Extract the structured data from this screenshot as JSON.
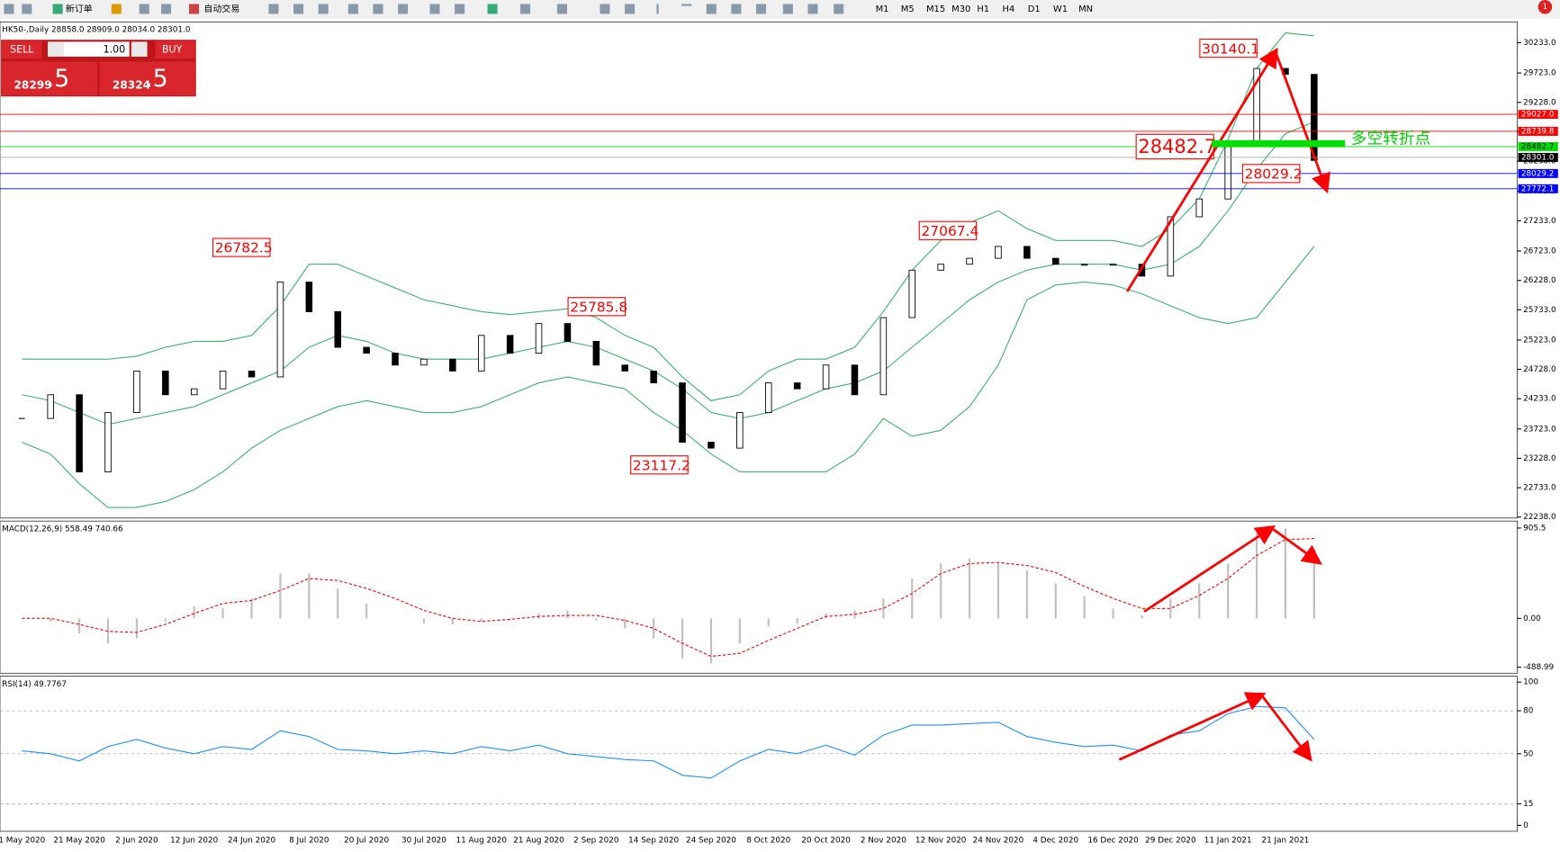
{
  "toolbar": {
    "new_order": "新订单",
    "auto_trading": "自动交易",
    "timeframes": [
      "M1",
      "M5",
      "M15",
      "M30",
      "H1",
      "H4",
      "D1",
      "W1",
      "MN"
    ],
    "notifications": "1"
  },
  "trade_panel": {
    "sell": "SELL",
    "lot": "1.00",
    "buy": "BUY",
    "bid_main": "28299",
    "bid_frac": ".5",
    "ask_main": "28324",
    "ask_frac": ".5"
  },
  "chart_data": [
    {
      "type": "candlestick",
      "title": "HK50-,Daily  28858.0 28909.0 28034.0 28301.0",
      "categories": [
        "1 May 2020",
        null,
        "21 May 2020",
        null,
        "2 Jun 2020",
        null,
        "12 Jun 2020",
        null,
        "24 Jun 2020",
        null,
        "8 Jul 2020",
        null,
        "20 Jul 2020",
        null,
        "30 Jul 2020",
        null,
        "11 Aug 2020",
        null,
        "21 Aug 2020",
        null,
        "2 Sep 2020",
        null,
        "14 Sep 2020",
        null,
        "24 Sep 2020",
        null,
        "8 Oct 2020",
        null,
        "20 Oct 2020",
        null,
        "2 Nov 2020",
        null,
        "12 Nov 2020",
        null,
        "24 Nov 2020",
        null,
        "4 Dec 2020",
        null,
        "16 Dec 2020",
        null,
        "29 Dec 2020",
        null,
        "11 Jan 2021",
        null,
        "21 Jan 2021",
        null
      ],
      "values": [
        23900,
        24300,
        23000,
        24000,
        24700,
        24300,
        24400,
        24700,
        24600,
        26200,
        25700,
        25100,
        25000,
        24800,
        24900,
        24700,
        25300,
        25000,
        25500,
        25200,
        24800,
        24700,
        24500,
        23500,
        23400,
        24000,
        24500,
        24400,
        24800,
        24300,
        25600,
        26400,
        26500,
        26600,
        26800,
        26600,
        26500,
        26500,
        26500,
        26300,
        27300,
        27600,
        28500,
        29800,
        29700,
        28250
      ],
      "bands": [
        {
          "color": "#3cb371",
          "values": [
            24900,
            24900,
            24900,
            24900,
            24950,
            25100,
            25200,
            25200,
            25300,
            25800,
            26500,
            26500,
            26300,
            26100,
            25900,
            25800,
            25700,
            25650,
            25700,
            25750,
            25600,
            25300,
            25100,
            24600,
            24200,
            24300,
            24700,
            24900,
            24900,
            25100,
            25700,
            26400,
            26900,
            27200,
            27400,
            27100,
            26900,
            26900,
            26900,
            26800,
            27100,
            27600,
            28600,
            29800,
            30400,
            30350
          ]
        },
        {
          "color": "#3cb371",
          "values": [
            24300,
            24200,
            24000,
            23800,
            23900,
            24000,
            24100,
            24300,
            24500,
            24700,
            25100,
            25300,
            25200,
            25000,
            24900,
            24900,
            24900,
            25000,
            25100,
            25200,
            25100,
            24900,
            24700,
            24400,
            24000,
            23900,
            24000,
            24200,
            24400,
            24500,
            24700,
            25100,
            25500,
            25900,
            26200,
            26400,
            26500,
            26500,
            26500,
            26400,
            26500,
            26800,
            27400,
            28100,
            28700,
            28900
          ]
        },
        {
          "color": "#3cb371",
          "values": [
            23500,
            23300,
            22800,
            22400,
            22400,
            22500,
            22700,
            23000,
            23400,
            23700,
            23900,
            24100,
            24200,
            24100,
            24000,
            24000,
            24100,
            24300,
            24500,
            24600,
            24500,
            24400,
            24000,
            23700,
            23300,
            23000,
            23000,
            23000,
            23000,
            23300,
            23900,
            23600,
            23700,
            24100,
            24800,
            25900,
            26150,
            26200,
            26150,
            26000,
            25800,
            25600,
            25500,
            25600,
            26200,
            26800
          ]
        }
      ],
      "ylim": [
        22238,
        30233
      ],
      "yticks": [
        {
          "value": 30233,
          "label": "30233.0"
        },
        {
          "value": 29723,
          "label": "29723.0"
        },
        {
          "value": 29228,
          "label": "29228.0"
        },
        {
          "value": 28733,
          "label": "28733.0"
        },
        {
          "value": 28238,
          "label": "28238.0"
        },
        {
          "value": 27733,
          "label": "27733.0"
        },
        {
          "value": 27233,
          "label": "27233.0"
        },
        {
          "value": 26723,
          "label": "26723.0"
        },
        {
          "value": 26228,
          "label": "26228.0"
        },
        {
          "value": 25733,
          "label": "25733.0"
        },
        {
          "value": 25223,
          "label": "25223.0"
        },
        {
          "value": 24728,
          "label": "24728.0"
        },
        {
          "value": 24233,
          "label": "24233.0"
        },
        {
          "value": 23723,
          "label": "23723.0"
        },
        {
          "value": 23228,
          "label": "23228.0"
        },
        {
          "value": 22733,
          "label": "22733.0"
        },
        {
          "value": 22238,
          "label": "22238.0"
        }
      ],
      "levels": [
        {
          "value": 29027,
          "label": "29027.0",
          "color": "#ff0000"
        },
        {
          "value": 28739.8,
          "label": "28739.8",
          "color": "#ff0000"
        },
        {
          "value": 28482.7,
          "label": "28482.7",
          "color": "#00dd00"
        },
        {
          "value": 28301,
          "label": "28301.0",
          "color": "#000000"
        },
        {
          "value": 28029.2,
          "label": "28029.2",
          "color": "#0000ff"
        },
        {
          "value": 27772.1,
          "label": "27772.1",
          "color": "#0000ff"
        }
      ],
      "annotations": [
        30140.1,
        26782.5,
        25785.8,
        27067.4,
        23117.2,
        28482.7,
        28029.2
      ],
      "note": "多空转折点"
    },
    {
      "type": "macd",
      "title": "MACD(12,26,9) 558.49 740.66",
      "ylim": [
        -488.99,
        905.5
      ],
      "yticks": [
        905.5,
        {
          "value": 0,
          "label": "0.00"
        },
        -488.99
      ],
      "series": [
        {
          "color": "#c0c0c0",
          "values": [
            0,
            -30,
            -150,
            -250,
            -200,
            -30,
            120,
            100,
            200,
            450,
            450,
            300,
            150,
            0,
            -50,
            -60,
            -30,
            -10,
            50,
            80,
            -20,
            -100,
            -200,
            -400,
            -450,
            -250,
            -80,
            -50,
            50,
            80,
            200,
            400,
            550,
            600,
            550,
            480,
            350,
            220,
            100,
            30,
            200,
            350,
            550,
            850,
            900,
            700
          ]
        },
        {
          "color": "#ff0000",
          "values": [
            0,
            0,
            -60,
            -130,
            -140,
            -60,
            50,
            150,
            180,
            280,
            400,
            380,
            300,
            200,
            80,
            0,
            -30,
            -10,
            20,
            30,
            30,
            -20,
            -100,
            -250,
            -380,
            -350,
            -220,
            -100,
            20,
            40,
            100,
            250,
            450,
            550,
            560,
            530,
            460,
            320,
            200,
            100,
            100,
            230,
            400,
            630,
            790,
            800
          ]
        }
      ]
    },
    {
      "type": "line",
      "title": "RSI(14) 49.7767",
      "ylim": [
        0,
        100
      ],
      "yticks": [
        100,
        80,
        50,
        15,
        0
      ],
      "series": [
        {
          "color": "#1e90ff",
          "values": [
            52,
            50,
            45,
            55,
            60,
            54,
            50,
            55,
            53,
            66,
            62,
            53,
            52,
            50,
            52,
            50,
            55,
            52,
            56,
            50,
            48,
            46,
            45,
            35,
            33,
            45,
            53,
            50,
            56,
            49,
            63,
            70,
            70,
            71,
            72,
            62,
            58,
            55,
            56,
            52,
            63,
            66,
            78,
            83,
            82,
            60
          ]
        }
      ]
    }
  ]
}
